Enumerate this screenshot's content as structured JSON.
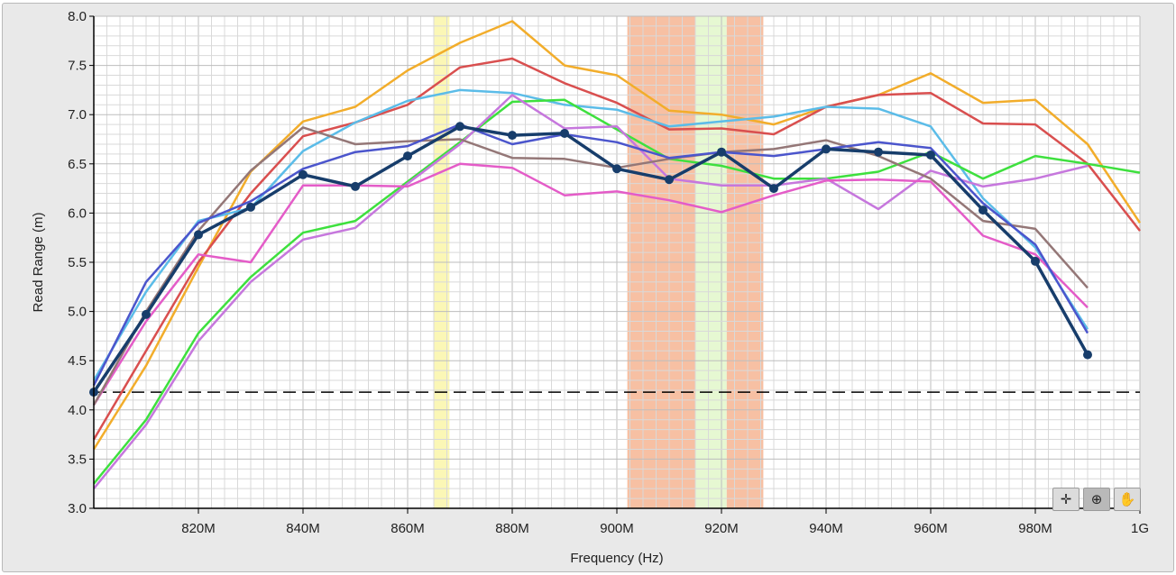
{
  "chart_data": {
    "type": "line",
    "title": "",
    "xlabel": "Frequency (Hz)",
    "ylabel": "Read Range (m)",
    "xlim": [
      800,
      1000
    ],
    "ylim": [
      3.0,
      8.0
    ],
    "x_unit": "MHz",
    "x_ticks": [
      {
        "value": 820,
        "label": "820M"
      },
      {
        "value": 840,
        "label": "840M"
      },
      {
        "value": 860,
        "label": "860M"
      },
      {
        "value": 880,
        "label": "880M"
      },
      {
        "value": 900,
        "label": "900M"
      },
      {
        "value": 920,
        "label": "920M"
      },
      {
        "value": 940,
        "label": "940M"
      },
      {
        "value": 960,
        "label": "960M"
      },
      {
        "value": 980,
        "label": "980M"
      },
      {
        "value": 1000,
        "label": "1G"
      }
    ],
    "y_ticks": [
      "3.0",
      "3.5",
      "4.0",
      "4.5",
      "5.0",
      "5.5",
      "6.0",
      "6.5",
      "7.0",
      "7.5",
      "8.0"
    ],
    "grid": true,
    "bands": [
      {
        "from": 865,
        "to": 868,
        "color": "#fbf7b6"
      },
      {
        "from": 902,
        "to": 915,
        "color": "#f7c0a3"
      },
      {
        "from": 915,
        "to": 921,
        "color": "#e6f8d2"
      },
      {
        "from": 921,
        "to": 928,
        "color": "#f7c0a3"
      }
    ],
    "threshold": {
      "y": 4.18,
      "style": "dashed",
      "color": "#000000"
    },
    "x": [
      800,
      810,
      820,
      830,
      840,
      850,
      860,
      870,
      880,
      890,
      900,
      910,
      920,
      930,
      940,
      950,
      960,
      970,
      980,
      990,
      1000
    ],
    "series": [
      {
        "color": "#f2ad2b",
        "width": 2.5,
        "values": [
          3.6,
          4.45,
          5.45,
          6.42,
          6.93,
          7.08,
          7.45,
          7.73,
          7.95,
          7.5,
          7.4,
          7.04,
          7.0,
          6.9,
          7.08,
          7.2,
          7.42,
          7.12,
          7.15,
          6.7,
          5.9
        ]
      },
      {
        "color": "#d94f4f",
        "width": 2.5,
        "values": [
          3.7,
          4.6,
          5.5,
          6.2,
          6.78,
          6.92,
          7.1,
          7.48,
          7.57,
          7.32,
          7.12,
          6.85,
          6.86,
          6.8,
          7.08,
          7.2,
          7.22,
          6.91,
          6.9,
          6.5,
          5.82
        ]
      },
      {
        "color": "#5bbce8",
        "width": 2.5,
        "values": [
          4.3,
          5.2,
          5.92,
          6.05,
          6.63,
          6.92,
          7.14,
          7.25,
          7.22,
          7.1,
          7.05,
          6.88,
          6.93,
          6.98,
          7.08,
          7.06,
          6.88,
          6.15,
          5.65,
          4.82,
          null
        ]
      },
      {
        "color": "#3ee03e",
        "width": 2.5,
        "values": [
          3.25,
          3.9,
          4.78,
          5.35,
          5.8,
          5.92,
          6.32,
          6.72,
          7.13,
          7.15,
          6.85,
          6.55,
          6.48,
          6.35,
          6.35,
          6.42,
          6.62,
          6.35,
          6.58,
          6.5,
          6.41
        ]
      },
      {
        "color": "#c677dd",
        "width": 2.5,
        "values": [
          3.2,
          3.85,
          4.7,
          5.3,
          5.73,
          5.85,
          6.3,
          6.7,
          7.2,
          6.86,
          6.88,
          6.35,
          6.28,
          6.28,
          6.35,
          6.04,
          6.43,
          6.27,
          6.35,
          6.48,
          null
        ]
      },
      {
        "color": "#e45cc8",
        "width": 2.5,
        "values": [
          4.05,
          4.9,
          5.58,
          5.5,
          6.28,
          6.28,
          6.27,
          6.5,
          6.46,
          6.18,
          6.22,
          6.13,
          6.01,
          6.18,
          6.33,
          6.34,
          6.32,
          5.77,
          5.58,
          5.04,
          null
        ]
      },
      {
        "color": "#947777",
        "width": 2.5,
        "values": [
          4.05,
          5.0,
          5.82,
          6.43,
          6.87,
          6.7,
          6.73,
          6.75,
          6.56,
          6.55,
          6.46,
          6.55,
          6.62,
          6.65,
          6.74,
          6.58,
          6.35,
          5.92,
          5.84,
          5.24,
          null
        ]
      },
      {
        "color": "#4b55cc",
        "width": 2.5,
        "values": [
          4.25,
          5.3,
          5.9,
          6.12,
          6.45,
          6.62,
          6.68,
          6.9,
          6.7,
          6.8,
          6.72,
          6.56,
          6.62,
          6.58,
          6.65,
          6.72,
          6.66,
          6.1,
          5.68,
          4.78,
          null
        ]
      },
      {
        "color": "#173d6b",
        "width": 3.5,
        "markers": true,
        "values": [
          4.18,
          4.97,
          5.78,
          6.06,
          6.39,
          6.27,
          6.58,
          6.88,
          6.79,
          6.81,
          6.45,
          6.34,
          6.62,
          6.25,
          6.65,
          6.62,
          6.59,
          6.03,
          5.51,
          4.56,
          null
        ]
      }
    ]
  },
  "toolbar": {
    "cursor_icon": "crosshair-icon",
    "zoom_icon": "zoom-icon",
    "pan_icon": "hand-pan-icon",
    "cursor_glyph": "✛",
    "zoom_glyph": "⊕",
    "pan_glyph": "✋"
  }
}
